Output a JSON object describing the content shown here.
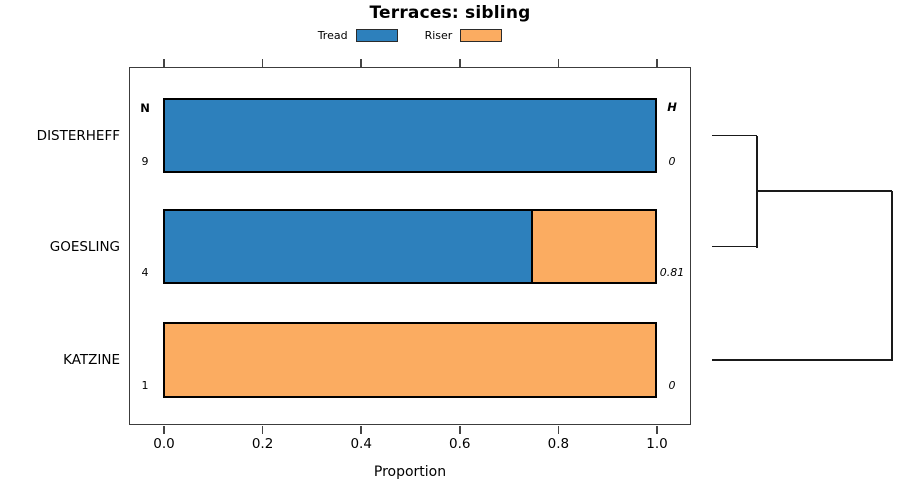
{
  "title": "Terraces: sibling",
  "legend": [
    {
      "label": "Tread",
      "color": "#2D80BC"
    },
    {
      "label": "Riser",
      "color": "#FBAC61"
    }
  ],
  "axis": {
    "label": "Proportion",
    "tick_labels": [
      "0.0",
      "0.2",
      "0.4",
      "0.6",
      "0.8",
      "1.0"
    ],
    "tick_values": [
      0.0,
      0.2,
      0.4,
      0.6,
      0.8,
      1.0
    ]
  },
  "column_headers": {
    "n": "N",
    "h": "H"
  },
  "chart_data": {
    "type": "bar",
    "orientation": "horizontal",
    "stacked": true,
    "title": "Terraces: sibling",
    "xlabel": "Proportion",
    "xlim": [
      0.0,
      1.0
    ],
    "grid": false,
    "legend_position": "top",
    "categories": [
      "DISTERHEFF",
      "GOESLING",
      "KATZINE"
    ],
    "series": [
      {
        "name": "Tread",
        "color": "#2D80BC",
        "values": [
          1.0,
          0.75,
          0.0
        ]
      },
      {
        "name": "Riser",
        "color": "#FBAC61",
        "values": [
          0.0,
          0.25,
          1.0
        ]
      }
    ],
    "row_annotations": {
      "N": [
        "9",
        "4",
        "1"
      ],
      "H": [
        "0",
        "0.81",
        "0"
      ]
    },
    "dendrogram": {
      "note": "right-side cluster tree; x is fraction of dendrogram width, y is row index (0.5 = midpoint of rows 0 and 1)",
      "segments": [
        {
          "x1": 0.0,
          "y1": 0.0,
          "x2": 0.25,
          "y2": 0.0
        },
        {
          "x1": 0.0,
          "y1": 1.0,
          "x2": 0.25,
          "y2": 1.0
        },
        {
          "x1": 0.25,
          "y1": 0.0,
          "x2": 0.25,
          "y2": 1.0
        },
        {
          "x1": 0.25,
          "y1": 0.5,
          "x2": 1.0,
          "y2": 0.5
        },
        {
          "x1": 0.0,
          "y1": 2.0,
          "x2": 1.0,
          "y2": 2.0
        },
        {
          "x1": 1.0,
          "y1": 0.5,
          "x2": 1.0,
          "y2": 2.0
        }
      ]
    }
  }
}
